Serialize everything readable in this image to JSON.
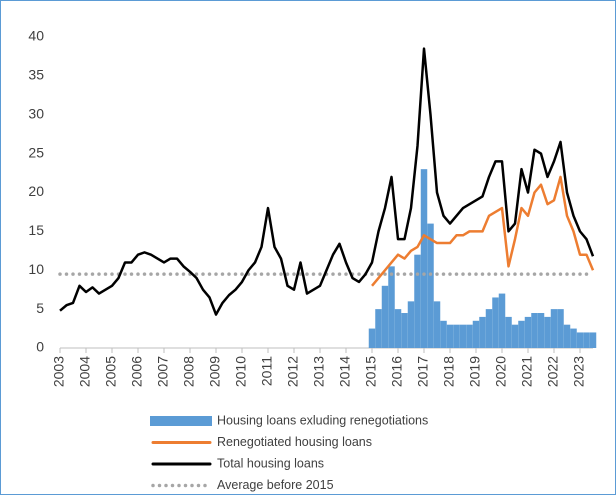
{
  "chart_data": {
    "type": "combo",
    "xlim": [
      2003,
      2023.5
    ],
    "xticks": [
      2003,
      2004,
      2005,
      2006,
      2007,
      2008,
      2009,
      2010,
      2011,
      2012,
      2013,
      2014,
      2015,
      2016,
      2017,
      2018,
      2019,
      2020,
      2021,
      2022,
      2023
    ],
    "ylim": [
      0,
      40
    ],
    "yticks": [
      0,
      5,
      10,
      15,
      20,
      25,
      30,
      35,
      40
    ],
    "series": [
      {
        "name": "Housing loans exluding renegotiations",
        "kind": "bar",
        "color": "#5b9bd5",
        "x": [
          2015,
          2015.25,
          2015.5,
          2015.75,
          2016,
          2016.25,
          2016.5,
          2016.75,
          2017,
          2017.25,
          2017.5,
          2017.75,
          2018,
          2018.25,
          2018.5,
          2018.75,
          2019,
          2019.25,
          2019.5,
          2019.75,
          2020,
          2020.25,
          2020.5,
          2020.75,
          2021,
          2021.25,
          2021.5,
          2021.75,
          2022,
          2022.25,
          2022.5,
          2022.75,
          2023,
          2023.25,
          2023.5
        ],
        "values": [
          2.5,
          5,
          8,
          10.5,
          5,
          4.5,
          6,
          12,
          23,
          16,
          6,
          3.5,
          3,
          3,
          3,
          3,
          3.5,
          4,
          5,
          6.5,
          7,
          4,
          3,
          3.5,
          4,
          4.5,
          4.5,
          4,
          5,
          5,
          3,
          2.5,
          2,
          2,
          2
        ]
      },
      {
        "name": "Renegotiated housing loans",
        "kind": "line",
        "color": "#ed7d31",
        "x": [
          2015,
          2015.25,
          2015.5,
          2015.75,
          2016,
          2016.25,
          2016.5,
          2016.75,
          2017,
          2017.25,
          2017.5,
          2017.75,
          2018,
          2018.25,
          2018.5,
          2018.75,
          2019,
          2019.25,
          2019.5,
          2019.75,
          2020,
          2020.25,
          2020.5,
          2020.75,
          2021,
          2021.25,
          2021.5,
          2021.75,
          2022,
          2022.25,
          2022.5,
          2022.75,
          2023,
          2023.25,
          2023.5
        ],
        "values": [
          8,
          9,
          10,
          11,
          12,
          11.5,
          12.5,
          13,
          14.5,
          14,
          13.5,
          13.5,
          13.5,
          14.5,
          14.5,
          15,
          15,
          15,
          17,
          17.5,
          18,
          10.5,
          14,
          18,
          17,
          20,
          21,
          18.5,
          19,
          22,
          17,
          15,
          12,
          12,
          10
        ]
      },
      {
        "name": "Total housing loans",
        "kind": "line",
        "color": "#000000",
        "x": [
          2003,
          2003.25,
          2003.5,
          2003.75,
          2004,
          2004.25,
          2004.5,
          2004.75,
          2005,
          2005.25,
          2005.5,
          2005.75,
          2006,
          2006.25,
          2006.5,
          2006.75,
          2007,
          2007.25,
          2007.5,
          2007.75,
          2008,
          2008.25,
          2008.5,
          2008.75,
          2009,
          2009.25,
          2009.5,
          2009.75,
          2010,
          2010.25,
          2010.5,
          2010.75,
          2011,
          2011.25,
          2011.5,
          2011.75,
          2012,
          2012.25,
          2012.5,
          2012.75,
          2013,
          2013.25,
          2013.5,
          2013.75,
          2014,
          2014.25,
          2014.5,
          2014.75,
          2015,
          2015.25,
          2015.5,
          2015.75,
          2016,
          2016.25,
          2016.5,
          2016.75,
          2017,
          2017.25,
          2017.5,
          2017.75,
          2018,
          2018.25,
          2018.5,
          2018.75,
          2019,
          2019.25,
          2019.5,
          2019.75,
          2020,
          2020.25,
          2020.5,
          2020.75,
          2021,
          2021.25,
          2021.5,
          2021.75,
          2022,
          2022.25,
          2022.5,
          2022.75,
          2023,
          2023.25,
          2023.5
        ],
        "values": [
          4.8,
          5.5,
          5.8,
          8,
          7.2,
          7.8,
          7,
          7.5,
          8,
          9,
          11,
          11,
          12,
          12.3,
          12,
          11.5,
          11,
          11.5,
          11.5,
          10.5,
          9.8,
          9,
          7.5,
          6.5,
          4.3,
          5.8,
          6.8,
          7.5,
          8.5,
          10,
          11,
          13,
          18,
          13,
          11.5,
          8,
          7.5,
          11,
          7,
          7.5,
          8,
          10,
          12,
          13.4,
          11,
          9,
          8.5,
          9.5,
          11,
          15,
          18,
          22,
          14,
          14,
          18,
          26,
          38.5,
          30,
          20,
          17,
          16,
          17,
          18,
          18.5,
          19,
          19.5,
          22,
          24,
          24,
          15,
          16,
          23,
          20,
          25.5,
          25,
          22,
          24,
          26.5,
          20,
          17,
          15,
          14,
          11.8
        ]
      },
      {
        "name": "Average before 2015",
        "kind": "dotted",
        "color": "#a6a6a6",
        "x": [
          2003,
          2023.5
        ],
        "values": [
          9.5,
          9.5
        ]
      }
    ]
  }
}
